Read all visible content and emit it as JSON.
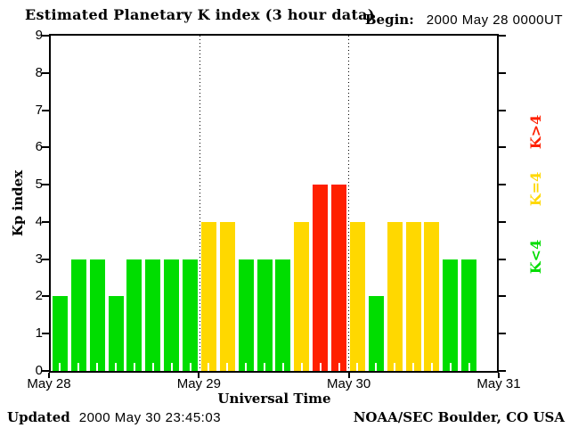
{
  "title": "Estimated Planetary K index (3 hour data)",
  "begin": {
    "label": "Begin:",
    "value": "2000 May 28 0000UT"
  },
  "footer": {
    "updated_label": "Updated",
    "updated_value": "2000 May 30 23:45:03",
    "credit": "NOAA/SEC Boulder, CO USA"
  },
  "colors": {
    "green": "#00dd00",
    "yellow": "#ffd800",
    "red": "#ff2000",
    "text": "#000000",
    "background": "#ffffff"
  },
  "chart_data": {
    "type": "bar",
    "title": "Estimated Planetary K index (3 hour data)",
    "xlabel": "Universal Time",
    "ylabel": "Kp index",
    "ylim": [
      0,
      9
    ],
    "y_ticks": [
      0,
      1,
      2,
      3,
      4,
      5,
      6,
      7,
      8,
      9
    ],
    "x_day_labels": [
      "May 28",
      "May 29",
      "May 30",
      "May 31"
    ],
    "hours_per_bar": 3,
    "values": [
      2,
      3,
      3,
      2,
      3,
      3,
      3,
      3,
      4,
      4,
      3,
      3,
      3,
      4,
      5,
      5,
      4,
      2,
      4,
      4,
      4,
      3,
      3
    ],
    "color_rule": "green if K<4, yellow if K=4, red if K>4",
    "legend": [
      {
        "label": "K>4",
        "color": "#ff2000"
      },
      {
        "label": "K=4",
        "color": "#ffd800"
      },
      {
        "label": "K<4",
        "color": "#00dd00"
      }
    ],
    "grid": "dotted vertical lines at day boundaries, ticks outside left/right axes",
    "legend_position": "right, rotated 90deg"
  }
}
